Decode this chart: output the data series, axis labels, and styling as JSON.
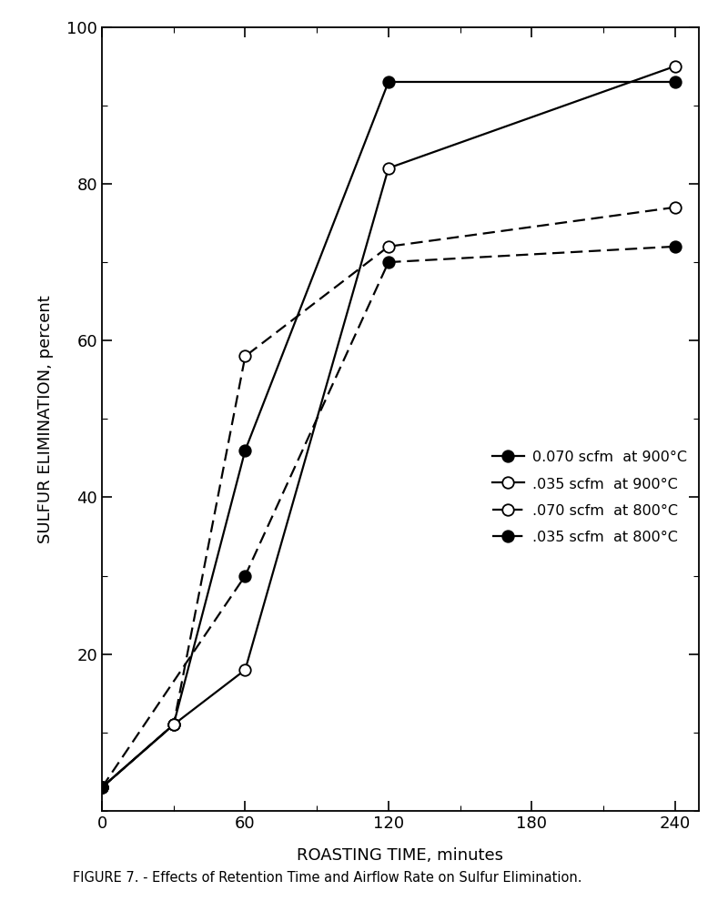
{
  "series": [
    {
      "label": "0.070 scfm  at 900°C",
      "x": [
        0,
        30,
        60,
        120,
        240
      ],
      "y": [
        3,
        11,
        46,
        93,
        93
      ],
      "linestyle": "solid",
      "marker": "filled_circle",
      "color": "black"
    },
    {
      "label": ".035 scfm  at 900°C",
      "x": [
        0,
        30,
        60,
        120,
        240
      ],
      "y": [
        3,
        11,
        18,
        82,
        95
      ],
      "linestyle": "solid",
      "marker": "open_circle",
      "color": "black"
    },
    {
      "label": ".070 scfm  at 800°C",
      "x": [
        0,
        30,
        60,
        120,
        240
      ],
      "y": [
        3,
        11,
        58,
        72,
        77
      ],
      "linestyle": "dashed",
      "marker": "open_circle",
      "color": "black"
    },
    {
      "label": ".035 scfm  at 800°C",
      "x": [
        0,
        60,
        120,
        240
      ],
      "y": [
        3,
        30,
        70,
        72
      ],
      "linestyle": "dashed",
      "marker": "filled_circle",
      "color": "black"
    }
  ],
  "xlabel": "ROASTING TIME, minutes",
  "ylabel": "SULFUR ELIMINATION, percent",
  "xlim": [
    0,
    250
  ],
  "ylim": [
    0,
    100
  ],
  "xticks": [
    0,
    60,
    120,
    180,
    240
  ],
  "xtick_labels": [
    "0",
    "60",
    "120",
    "180",
    "240"
  ],
  "yticks": [
    20,
    40,
    60,
    80,
    100
  ],
  "ytick_labels": [
    "20",
    "40",
    "60",
    "80",
    "100"
  ],
  "figure_caption": "FIGURE 7. - Effects of Retention Time and Airflow Rate on Sulfur Elimination.",
  "background_color": "#ffffff",
  "marker_size": 9,
  "linewidth": 1.6,
  "font_size": 13,
  "caption_font_size": 10.5
}
